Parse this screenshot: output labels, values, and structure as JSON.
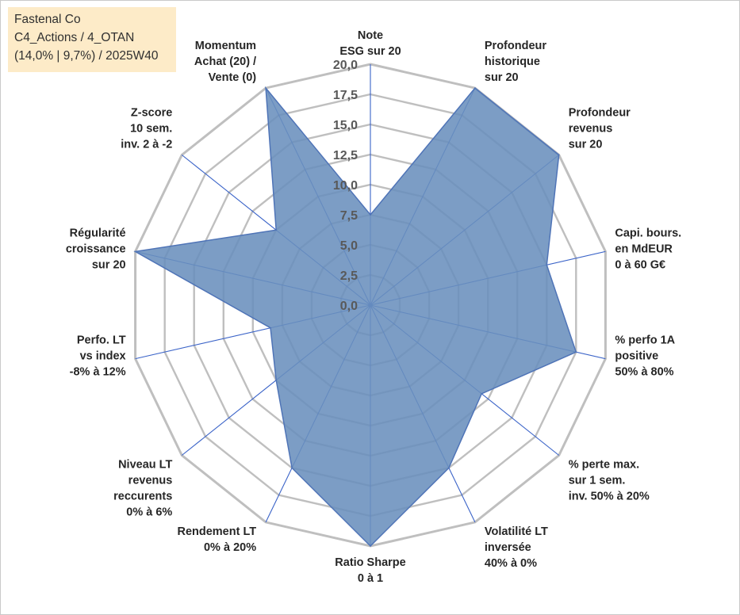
{
  "chart_data": {
    "type": "radar",
    "title_lines": [
      "Fastenal Co",
      "C4_Actions / 4_OTAN",
      "(14,0% | 9,7%) / 2025W40"
    ],
    "r_range": [
      0,
      20
    ],
    "tick_labels": [
      "0,0",
      "2,5",
      "5,0",
      "7,5",
      "10,0",
      "12,5",
      "15,0",
      "17,5",
      "20,0"
    ],
    "categories": [
      {
        "lines": [
          "Note",
          "ESG sur 20"
        ],
        "value": 7.5
      },
      {
        "lines": [
          "Profondeur",
          "historique",
          "sur 20"
        ],
        "value": 20
      },
      {
        "lines": [
          "Profondeur",
          "revenus",
          "sur 20"
        ],
        "value": 20
      },
      {
        "lines": [
          "Capi. bours.",
          "en MdEUR",
          "0 à 60 G€"
        ],
        "value": 15
      },
      {
        "lines": [
          "% perfo 1A",
          "positive",
          "50% à 80%"
        ],
        "value": 17.5
      },
      {
        "lines": [
          "% perte max.",
          "sur 1 sem.",
          "inv. 50% à 20%"
        ],
        "value": 11.8
      },
      {
        "lines": [
          "Volatilité LT",
          "inversée",
          "40% à 0%"
        ],
        "value": 15
      },
      {
        "lines": [
          "Ratio Sharpe",
          "0 à 1"
        ],
        "value": 20
      },
      {
        "lines": [
          "Rendement LT",
          "0% à 20%"
        ],
        "value": 15
      },
      {
        "lines": [
          "Niveau LT",
          "revenus",
          "reccurents",
          "0% à 6%"
        ],
        "value": 10
      },
      {
        "lines": [
          "Perfo. LT",
          "vs index",
          "-8% à 12%"
        ],
        "value": 8.5
      },
      {
        "lines": [
          "Régularité",
          "croissance",
          "sur 20"
        ],
        "value": 20
      },
      {
        "lines": [
          "Z-score",
          "10 sem.",
          "inv. 2 à -2"
        ],
        "value": 10
      },
      {
        "lines": [
          "Momentum",
          "Achat (20) /",
          "Vente (0)"
        ],
        "value": 20
      }
    ],
    "series": [
      {
        "name": "Fastenal Co",
        "color": "#5b84b5"
      }
    ],
    "colors": {
      "grid": "#bfbfbf",
      "spoke": "#3a63c8",
      "fill": "#6a90bd",
      "stroke": "#4f74b7"
    }
  }
}
